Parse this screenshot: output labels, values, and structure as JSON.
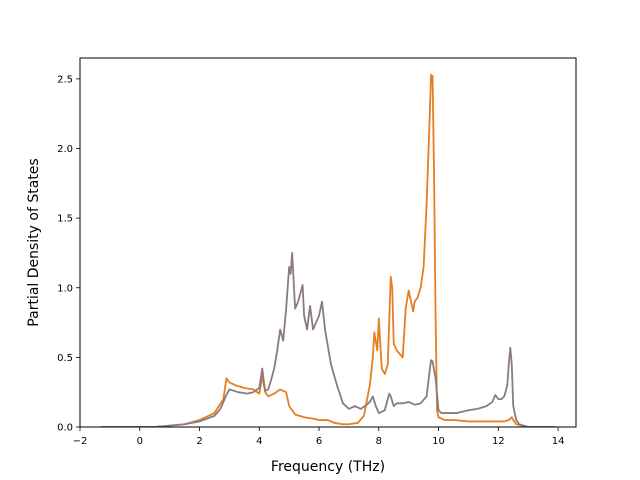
{
  "chart_data": {
    "type": "line",
    "title": "",
    "xlabel": "Frequency (THz)",
    "ylabel": "Partial Density of States",
    "xlim": [
      -2,
      14.6
    ],
    "ylim": [
      0,
      2.65
    ],
    "xticks": [
      -2,
      0,
      2,
      4,
      6,
      8,
      10,
      12,
      14
    ],
    "yticks": [
      0.0,
      0.5,
      1.0,
      1.5,
      2.0,
      2.5
    ],
    "xtick_labels": [
      "−2",
      "0",
      "2",
      "4",
      "6",
      "8",
      "10",
      "12",
      "14"
    ],
    "ytick_labels": [
      "0.0",
      "0.5",
      "1.0",
      "1.5",
      "2.0",
      "2.5"
    ],
    "grid": false,
    "legend": "none",
    "series": [
      {
        "color": "#e67e22",
        "x": [
          -1.3,
          0,
          0.5,
          1.0,
          1.5,
          2.0,
          2.5,
          2.8,
          2.9,
          3.0,
          3.2,
          3.5,
          3.8,
          4.0,
          4.1,
          4.2,
          4.3,
          4.5,
          4.7,
          4.9,
          5.0,
          5.2,
          5.5,
          5.8,
          6.0,
          6.3,
          6.5,
          6.8,
          7.0,
          7.3,
          7.5,
          7.7,
          7.8,
          7.85,
          7.95,
          8.0,
          8.1,
          8.2,
          8.3,
          8.4,
          8.45,
          8.5,
          8.6,
          8.8,
          8.9,
          9.0,
          9.1,
          9.15,
          9.2,
          9.3,
          9.4,
          9.5,
          9.6,
          9.7,
          9.75,
          9.8,
          9.85,
          9.9,
          9.95,
          10.0,
          10.2,
          10.5,
          11.0,
          11.5,
          12.0,
          12.2,
          12.35,
          12.45,
          12.5,
          12.6,
          13.0,
          13.9
        ],
        "y": [
          0.0,
          0.0,
          0.0,
          0.01,
          0.02,
          0.05,
          0.1,
          0.2,
          0.35,
          0.32,
          0.3,
          0.28,
          0.27,
          0.24,
          0.36,
          0.25,
          0.22,
          0.24,
          0.27,
          0.25,
          0.15,
          0.09,
          0.07,
          0.06,
          0.05,
          0.05,
          0.03,
          0.02,
          0.02,
          0.03,
          0.08,
          0.3,
          0.5,
          0.68,
          0.55,
          0.78,
          0.42,
          0.38,
          0.45,
          1.08,
          1.0,
          0.6,
          0.55,
          0.5,
          0.85,
          0.98,
          0.88,
          0.83,
          0.9,
          0.93,
          1.0,
          1.15,
          1.6,
          2.2,
          2.53,
          2.52,
          1.8,
          0.8,
          0.12,
          0.07,
          0.05,
          0.05,
          0.04,
          0.04,
          0.04,
          0.04,
          0.05,
          0.07,
          0.05,
          0.02,
          0.0,
          0.0
        ]
      },
      {
        "color": "#8a7b80",
        "x": [
          -1.3,
          0,
          0.5,
          1.0,
          1.5,
          2.0,
          2.5,
          2.7,
          2.8,
          2.9,
          3.0,
          3.3,
          3.6,
          3.8,
          4.0,
          4.05,
          4.1,
          4.15,
          4.2,
          4.3,
          4.4,
          4.5,
          4.6,
          4.7,
          4.8,
          4.9,
          5.0,
          5.05,
          5.1,
          5.15,
          5.2,
          5.3,
          5.4,
          5.45,
          5.5,
          5.6,
          5.7,
          5.8,
          5.9,
          6.0,
          6.1,
          6.2,
          6.4,
          6.6,
          6.8,
          7.0,
          7.2,
          7.4,
          7.6,
          7.7,
          7.8,
          7.9,
          8.0,
          8.2,
          8.35,
          8.4,
          8.5,
          8.6,
          8.8,
          9.0,
          9.2,
          9.4,
          9.6,
          9.7,
          9.75,
          9.8,
          9.9,
          10.0,
          10.1,
          10.3,
          10.6,
          11.0,
          11.3,
          11.6,
          11.8,
          11.9,
          12.0,
          12.1,
          12.2,
          12.3,
          12.35,
          12.4,
          12.45,
          12.5,
          12.6,
          12.7,
          13.0,
          13.9
        ],
        "y": [
          0.0,
          0.0,
          0.0,
          0.01,
          0.02,
          0.04,
          0.08,
          0.13,
          0.18,
          0.23,
          0.27,
          0.25,
          0.24,
          0.25,
          0.28,
          0.35,
          0.42,
          0.33,
          0.26,
          0.27,
          0.34,
          0.42,
          0.55,
          0.7,
          0.62,
          0.85,
          1.15,
          1.1,
          1.25,
          1.05,
          0.85,
          0.9,
          0.98,
          1.02,
          0.8,
          0.7,
          0.87,
          0.7,
          0.75,
          0.8,
          0.9,
          0.7,
          0.45,
          0.3,
          0.17,
          0.13,
          0.15,
          0.13,
          0.16,
          0.18,
          0.22,
          0.15,
          0.1,
          0.12,
          0.24,
          0.22,
          0.15,
          0.17,
          0.17,
          0.18,
          0.16,
          0.17,
          0.22,
          0.4,
          0.48,
          0.47,
          0.35,
          0.12,
          0.1,
          0.1,
          0.1,
          0.12,
          0.13,
          0.15,
          0.18,
          0.23,
          0.2,
          0.2,
          0.22,
          0.3,
          0.45,
          0.57,
          0.45,
          0.15,
          0.05,
          0.02,
          0.0,
          0.0
        ]
      }
    ]
  }
}
